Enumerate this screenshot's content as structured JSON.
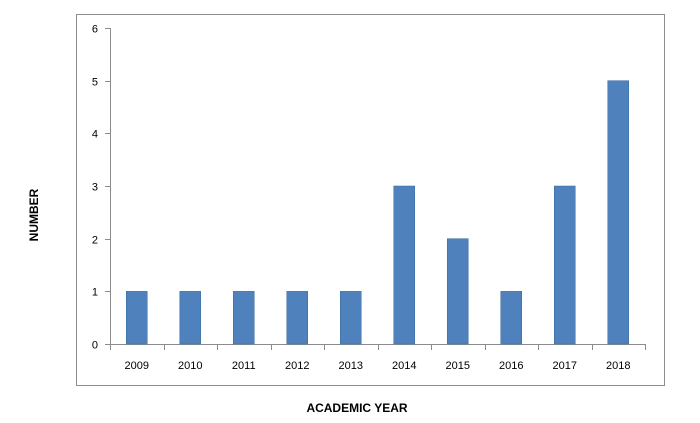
{
  "chart_data": {
    "type": "bar",
    "categories": [
      "2009",
      "2010",
      "2011",
      "2012",
      "2013",
      "2014",
      "2015",
      "2016",
      "2017",
      "2018"
    ],
    "values": [
      1,
      1,
      1,
      1,
      1,
      3,
      2,
      1,
      3,
      5
    ],
    "xlabel": "ACADEMIC YEAR",
    "ylabel": "NUMBER",
    "ylim": [
      0,
      6
    ],
    "yticks": [
      "0",
      "1",
      "2",
      "3",
      "4",
      "5",
      "6"
    ],
    "grid": false,
    "legend": "none",
    "bar_color": "#4f81bd",
    "bar_stroke": "#3a6a9e"
  }
}
